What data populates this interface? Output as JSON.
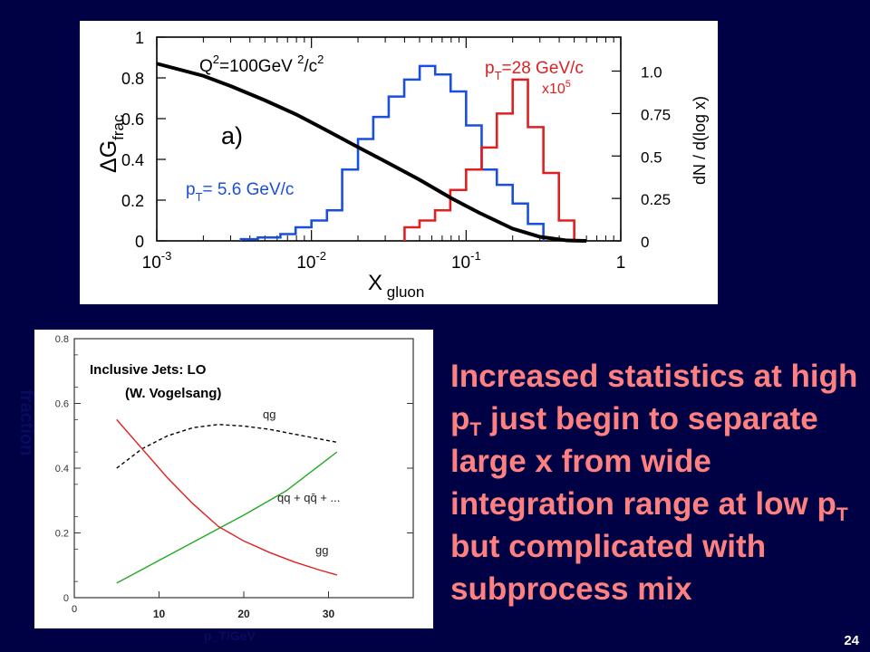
{
  "slide": {
    "page_number": "24",
    "body_text_parts": [
      "Increased statistics at high p",
      "T",
      " just begin to separate large x from wide integration range at low p",
      "T",
      " but complicated with subprocess  mix"
    ],
    "background": "#000044",
    "text_color": "#ff8080"
  },
  "chart_data": [
    {
      "type": "line",
      "panel": "a",
      "annotation_label": "a)",
      "xlabel": "X",
      "xlabel_sub": "gluon",
      "ylabel_left": "ΔG",
      "ylabel_left_sub": "frac",
      "ylabel_right": "dN / d(log x)",
      "x_scale": "log",
      "xlim": [
        0.001,
        1
      ],
      "x_ticks": [
        0.001,
        0.01,
        0.1,
        1
      ],
      "x_tick_labels": [
        {
          "base": "10",
          "exp": "-3"
        },
        {
          "base": "10",
          "exp": "-2"
        },
        {
          "base": "10",
          "exp": "-1"
        },
        {
          "base": "1",
          "exp": ""
        }
      ],
      "ylim_left": [
        0,
        1
      ],
      "y_ticks_left": [
        0,
        0.2,
        0.4,
        0.6,
        0.8,
        1
      ],
      "y_tick_labels_left": [
        "0",
        "0.2",
        "0.4",
        "0.6",
        "0.8",
        "1"
      ],
      "ylim_right": [
        0,
        1.2
      ],
      "y_ticks_right": [
        0,
        0.25,
        0.5,
        0.75,
        1.0
      ],
      "y_tick_labels_right": [
        "0",
        "0.25",
        "0.5",
        "0.75",
        "1.0"
      ],
      "q2_label": {
        "q": "Q",
        "exp1": "2",
        "mid": "=100GeV ",
        "exp2": "2",
        "end": "/c",
        "exp3": "2"
      },
      "curve": {
        "color": "#000000",
        "x": [
          0.001,
          0.002,
          0.003,
          0.005,
          0.008,
          0.012,
          0.02,
          0.03,
          0.05,
          0.08,
          0.12,
          0.2,
          0.3,
          0.45,
          0.6
        ],
        "y": [
          0.87,
          0.81,
          0.76,
          0.69,
          0.62,
          0.55,
          0.46,
          0.39,
          0.3,
          0.21,
          0.14,
          0.06,
          0.02,
          0.002,
          0
        ]
      },
      "hist_blue": {
        "label_main": "p",
        "label_sub": "T",
        "label_rest": "= 5.6 GeV/c",
        "color": "#1a4fdd",
        "edges": [
          0.0035,
          0.0045,
          0.0063,
          0.0079,
          0.01,
          0.0126,
          0.0158,
          0.02,
          0.0251,
          0.0316,
          0.0398,
          0.0501,
          0.0631,
          0.0794,
          0.1,
          0.126,
          0.158,
          0.2,
          0.251,
          0.316
        ],
        "values": [
          0.01,
          0.02,
          0.04,
          0.08,
          0.12,
          0.18,
          0.42,
          0.6,
          0.73,
          0.85,
          0.95,
          1.03,
          0.98,
          0.88,
          0.68,
          0.42,
          0.33,
          0.22,
          0.1
        ]
      },
      "hist_red": {
        "label_main": "p",
        "label_sub": "T",
        "label_rest": "=28 GeV/c",
        "label_scale_base": "x10",
        "label_scale_exp": "5",
        "color": "#e02020",
        "edges": [
          0.04,
          0.05,
          0.063,
          0.079,
          0.1,
          0.126,
          0.158,
          0.2,
          0.251,
          0.316,
          0.398,
          0.5
        ],
        "values": [
          0.08,
          0.12,
          0.18,
          0.3,
          0.42,
          0.55,
          0.75,
          0.95,
          0.67,
          0.4,
          0.12
        ]
      }
    },
    {
      "type": "line",
      "panel": "b",
      "title": "Inclusive Jets: LO",
      "subtitle": "(W. Vogelsang)",
      "ylabel": "fraction",
      "xlabel": "p_T/GeV",
      "xlim": [
        0,
        40
      ],
      "ylim": [
        0,
        0.8
      ],
      "y_ticks": [
        0,
        0.2,
        0.4,
        0.6,
        0.8
      ],
      "y_tick_labels": [
        "0",
        "0.2",
        "0.4",
        "0.6",
        "0.8"
      ],
      "x_ticks": [
        0,
        10,
        20,
        30
      ],
      "x_tick_labels": [
        "0",
        "10",
        "20",
        "30"
      ],
      "series": [
        {
          "name": "qg",
          "color": "#000000",
          "dash": "4,3",
          "x": [
            5,
            8,
            11,
            14,
            17,
            20,
            23,
            26,
            29,
            31
          ],
          "y": [
            0.4,
            0.46,
            0.5,
            0.525,
            0.535,
            0.53,
            0.52,
            0.505,
            0.49,
            0.48
          ]
        },
        {
          "name": "qq + qq̄ + ...",
          "color": "#22aa22",
          "dash": "",
          "x": [
            5,
            10,
            15,
            20,
            25,
            31
          ],
          "y": [
            0.045,
            0.115,
            0.185,
            0.255,
            0.33,
            0.45
          ]
        },
        {
          "name": "gg",
          "color": "#e02020",
          "dash": "",
          "x": [
            5,
            8,
            11,
            14,
            17,
            20,
            23,
            26,
            29,
            31
          ],
          "y": [
            0.55,
            0.46,
            0.37,
            0.29,
            0.22,
            0.175,
            0.14,
            0.11,
            0.085,
            0.07
          ]
        }
      ]
    }
  ]
}
